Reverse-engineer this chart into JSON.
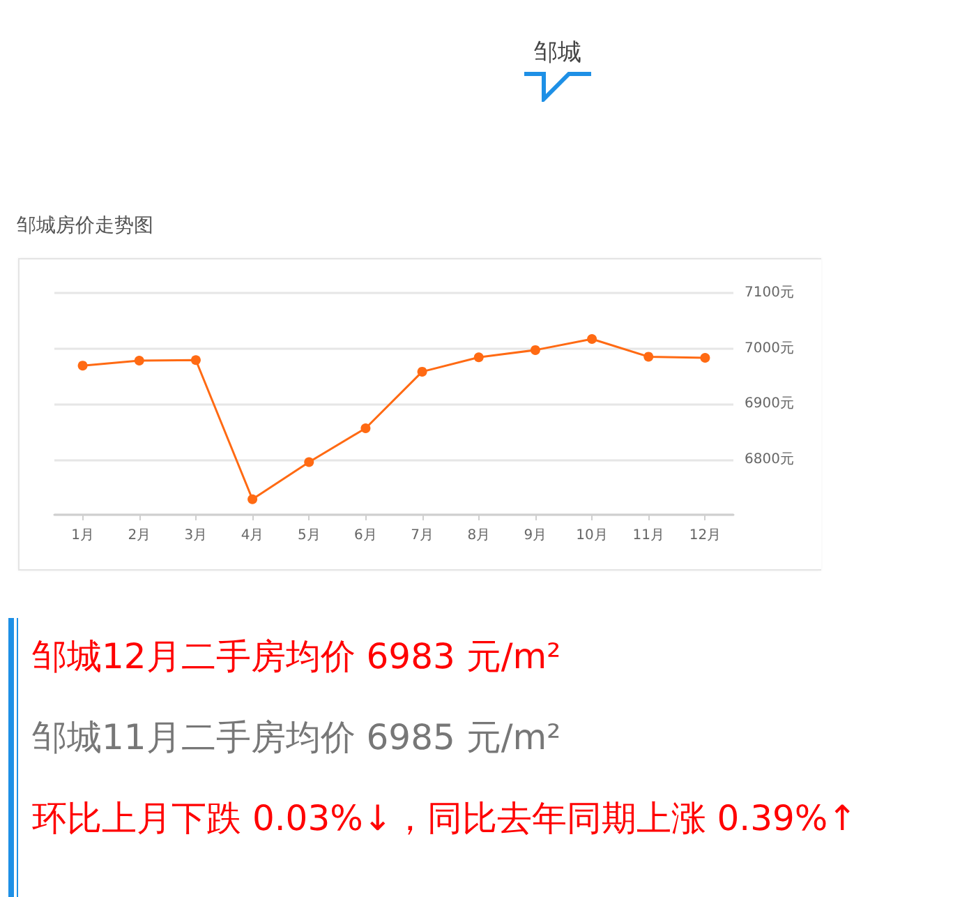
{
  "chart_data": {
    "type": "line",
    "title": "邹城房价走势图",
    "categories": [
      "1月",
      "2月",
      "3月",
      "4月",
      "5月",
      "6月",
      "7月",
      "8月",
      "9月",
      "10月",
      "11月",
      "12月"
    ],
    "values": [
      6969,
      6978,
      6979,
      6728,
      6795,
      6856,
      6958,
      6984,
      6997,
      7017,
      6985,
      6983
    ],
    "color": "#ff6a13",
    "ylim": [
      6700,
      7100
    ],
    "yticks": [
      {
        "value": 6800,
        "label": "6800元"
      },
      {
        "value": 6900,
        "label": "6900元"
      },
      {
        "value": 7000,
        "label": "7000元"
      },
      {
        "value": 7100,
        "label": "7100元"
      }
    ],
    "grid": "y",
    "marker": "circle",
    "line_style": "solid",
    "annotations": [
      "邹城",
      "邹城12月二手房均价 6983 元/m²",
      "邹城11月二手房均价 6985 元/m²",
      "环比上月下跌 0.03%↓，同比去年同期上涨 0.39%↑"
    ]
  }
}
